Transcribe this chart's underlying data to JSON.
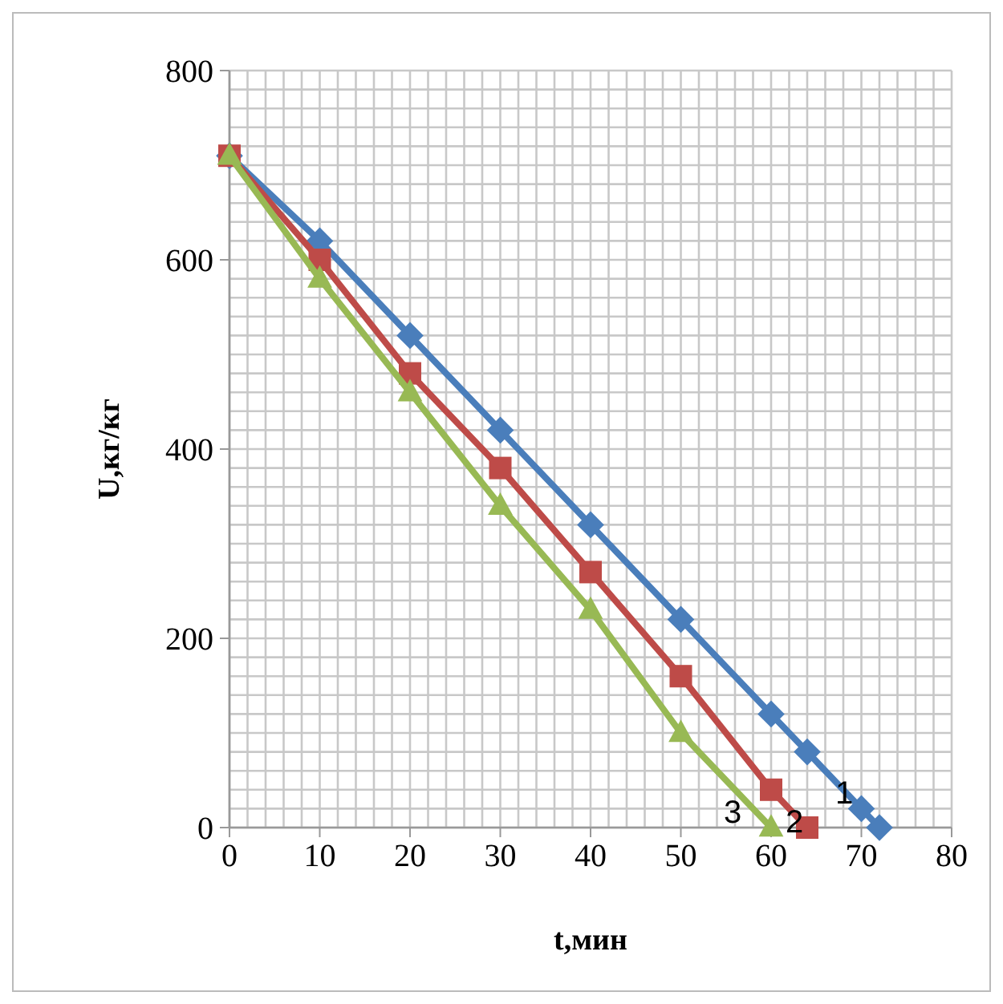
{
  "chart_data": {
    "type": "line",
    "xlabel": "t,мин",
    "ylabel": "U,кг/кг",
    "xlim": [
      0,
      80
    ],
    "ylim": [
      0,
      800
    ],
    "xticks": [
      0,
      {
        "value": 2,
        "label": null
      },
      {
        "value": 4,
        "label": null
      },
      {
        "value": 6,
        "label": null
      },
      {
        "value": 8,
        "label": null
      },
      10,
      {
        "value": 12,
        "label": null
      },
      {
        "value": 14,
        "label": null
      },
      {
        "value": 16,
        "label": null
      },
      {
        "value": 18,
        "label": null
      },
      20,
      {
        "value": 22,
        "label": null
      },
      {
        "value": 24,
        "label": null
      },
      {
        "value": 26,
        "label": null
      },
      {
        "value": 28,
        "label": null
      },
      30,
      {
        "value": 32,
        "label": null
      },
      {
        "value": 34,
        "label": null
      },
      {
        "value": 36,
        "label": null
      },
      {
        "value": 38,
        "label": null
      },
      40,
      {
        "value": 42,
        "label": null
      },
      {
        "value": 44,
        "label": null
      },
      {
        "value": 46,
        "label": null
      },
      {
        "value": 48,
        "label": null
      },
      50,
      {
        "value": 52,
        "label": null
      },
      {
        "value": 54,
        "label": null
      },
      {
        "value": 56,
        "label": null
      },
      {
        "value": 58,
        "label": null
      },
      60,
      {
        "value": 62,
        "label": null
      },
      {
        "value": 64,
        "label": null
      },
      {
        "value": 66,
        "label": null
      },
      {
        "value": 68,
        "label": null
      },
      70,
      {
        "value": 72,
        "label": null
      },
      {
        "value": 74,
        "label": null
      },
      {
        "value": 76,
        "label": null
      },
      {
        "value": 78,
        "label": null
      },
      80
    ],
    "yticks": [
      0,
      {
        "value": 20,
        "label": null
      },
      {
        "value": 40,
        "label": null
      },
      {
        "value": 60,
        "label": null
      },
      {
        "value": 80,
        "label": null
      },
      {
        "value": 100,
        "label": null
      },
      {
        "value": 120,
        "label": null
      },
      {
        "value": 140,
        "label": null
      },
      {
        "value": 160,
        "label": null
      },
      {
        "value": 180,
        "label": null
      },
      200,
      {
        "value": 220,
        "label": null
      },
      {
        "value": 240,
        "label": null
      },
      {
        "value": 260,
        "label": null
      },
      {
        "value": 280,
        "label": null
      },
      {
        "value": 300,
        "label": null
      },
      {
        "value": 320,
        "label": null
      },
      {
        "value": 340,
        "label": null
      },
      {
        "value": 360,
        "label": null
      },
      {
        "value": 380,
        "label": null
      },
      400,
      {
        "value": 420,
        "label": null
      },
      {
        "value": 440,
        "label": null
      },
      {
        "value": 460,
        "label": null
      },
      {
        "value": 480,
        "label": null
      },
      {
        "value": 500,
        "label": null
      },
      {
        "value": 520,
        "label": null
      },
      {
        "value": 540,
        "label": null
      },
      {
        "value": 560,
        "label": null
      },
      {
        "value": 580,
        "label": null
      },
      600,
      {
        "value": 620,
        "label": null
      },
      {
        "value": 640,
        "label": null
      },
      {
        "value": 660,
        "label": null
      },
      {
        "value": 680,
        "label": null
      },
      {
        "value": 700,
        "label": null
      },
      {
        "value": 720,
        "label": null
      },
      {
        "value": 740,
        "label": null
      },
      {
        "value": 760,
        "label": null
      },
      {
        "value": 780,
        "label": null
      },
      800
    ],
    "grid": true,
    "series": [
      {
        "name": "1",
        "color": "#4a7ebb",
        "marker": "diamond",
        "x": [
          0,
          10,
          20,
          30,
          40,
          50,
          60,
          64,
          70,
          72
        ],
        "values": [
          710,
          620,
          520,
          420,
          320,
          220,
          120,
          80,
          20,
          0
        ]
      },
      {
        "name": "2",
        "color": "#be4b48",
        "marker": "square",
        "x": [
          0,
          10,
          20,
          30,
          40,
          50,
          60,
          64
        ],
        "values": [
          710,
          600,
          480,
          380,
          270,
          160,
          40,
          0
        ]
      },
      {
        "name": "3",
        "color": "#98b954",
        "marker": "triangle",
        "x": [
          0,
          10,
          20,
          30,
          40,
          50,
          60
        ],
        "values": [
          710,
          580,
          460,
          340,
          230,
          100,
          0
        ]
      }
    ]
  }
}
